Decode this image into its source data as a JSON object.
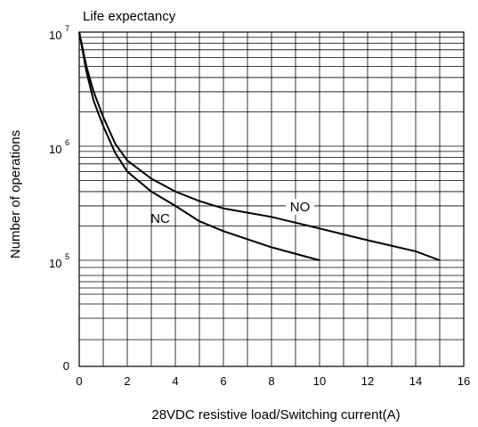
{
  "chart_data": {
    "type": "line",
    "title": "Life expectancy",
    "xlabel": "28VDC resistive load/Switching current(A)",
    "ylabel": "Number of operations",
    "xlim": [
      0,
      16
    ],
    "x_ticks": [
      "0",
      "2",
      "4",
      "6",
      "8",
      "10",
      "12",
      "14",
      "16"
    ],
    "y_scale": "log",
    "y_ticks": [
      {
        "label": "0",
        "value": 0
      },
      {
        "base": "10",
        "exp": "5",
        "value": 100000
      },
      {
        "base": "10",
        "exp": "6",
        "value": 1000000
      },
      {
        "base": "10",
        "exp": "7",
        "value": 10000000
      }
    ],
    "grid": true,
    "series": [
      {
        "name": "NO",
        "x": [
          0,
          0.3,
          0.6,
          1,
          1.5,
          2,
          3,
          4,
          5,
          6,
          8,
          10,
          12,
          14,
          15
        ],
        "y": [
          10000000,
          5000000,
          3000000,
          1800000,
          1050000,
          750000,
          520000,
          400000,
          330000,
          285000,
          240000,
          190000,
          150000,
          120000,
          100000
        ]
      },
      {
        "name": "NC",
        "x": [
          0,
          0.3,
          0.6,
          1,
          1.5,
          2,
          3,
          4,
          5,
          6,
          8,
          10
        ],
        "y": [
          10000000,
          4500000,
          2500000,
          1500000,
          870000,
          600000,
          400000,
          300000,
          220000,
          180000,
          130000,
          100000
        ]
      }
    ]
  }
}
